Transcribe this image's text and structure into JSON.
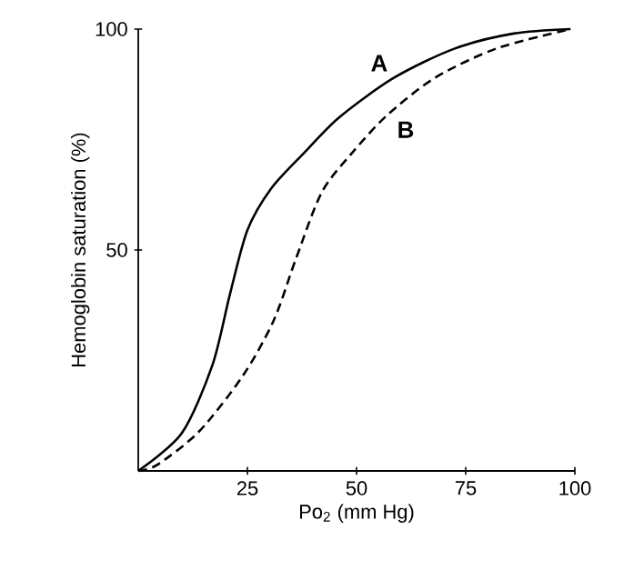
{
  "chart_data": {
    "type": "line",
    "xlabel": "Po$_{2}$ (mm Hg)",
    "ylabel": "Hemoglobin saturation (%)",
    "xlim": [
      0,
      100
    ],
    "ylim": [
      0,
      100
    ],
    "xticks": [
      25,
      50,
      75,
      100
    ],
    "yticks": [
      50,
      100
    ],
    "grid": false,
    "legend": false,
    "marker": "none",
    "series": [
      {
        "name": "A",
        "color": "#000000",
        "line_style": "solid",
        "x": [
          0,
          10,
          17,
          21,
          25,
          30.5,
          38,
          46,
          58.6,
          72.5,
          86,
          99
        ],
        "values": [
          0,
          8.6,
          24,
          40,
          54.5,
          64,
          72,
          80,
          89,
          95.6,
          99,
          100
        ]
      },
      {
        "name": "B",
        "color": "#000000",
        "line_style": "dashed",
        "x": [
          0,
          4.4,
          14,
          24,
          31,
          36,
          42,
          49,
          57,
          68,
          82,
          99
        ],
        "values": [
          0,
          1.4,
          9,
          21.6,
          34,
          47.7,
          63,
          72,
          80.5,
          89,
          95.6,
          100
        ]
      }
    ]
  }
}
